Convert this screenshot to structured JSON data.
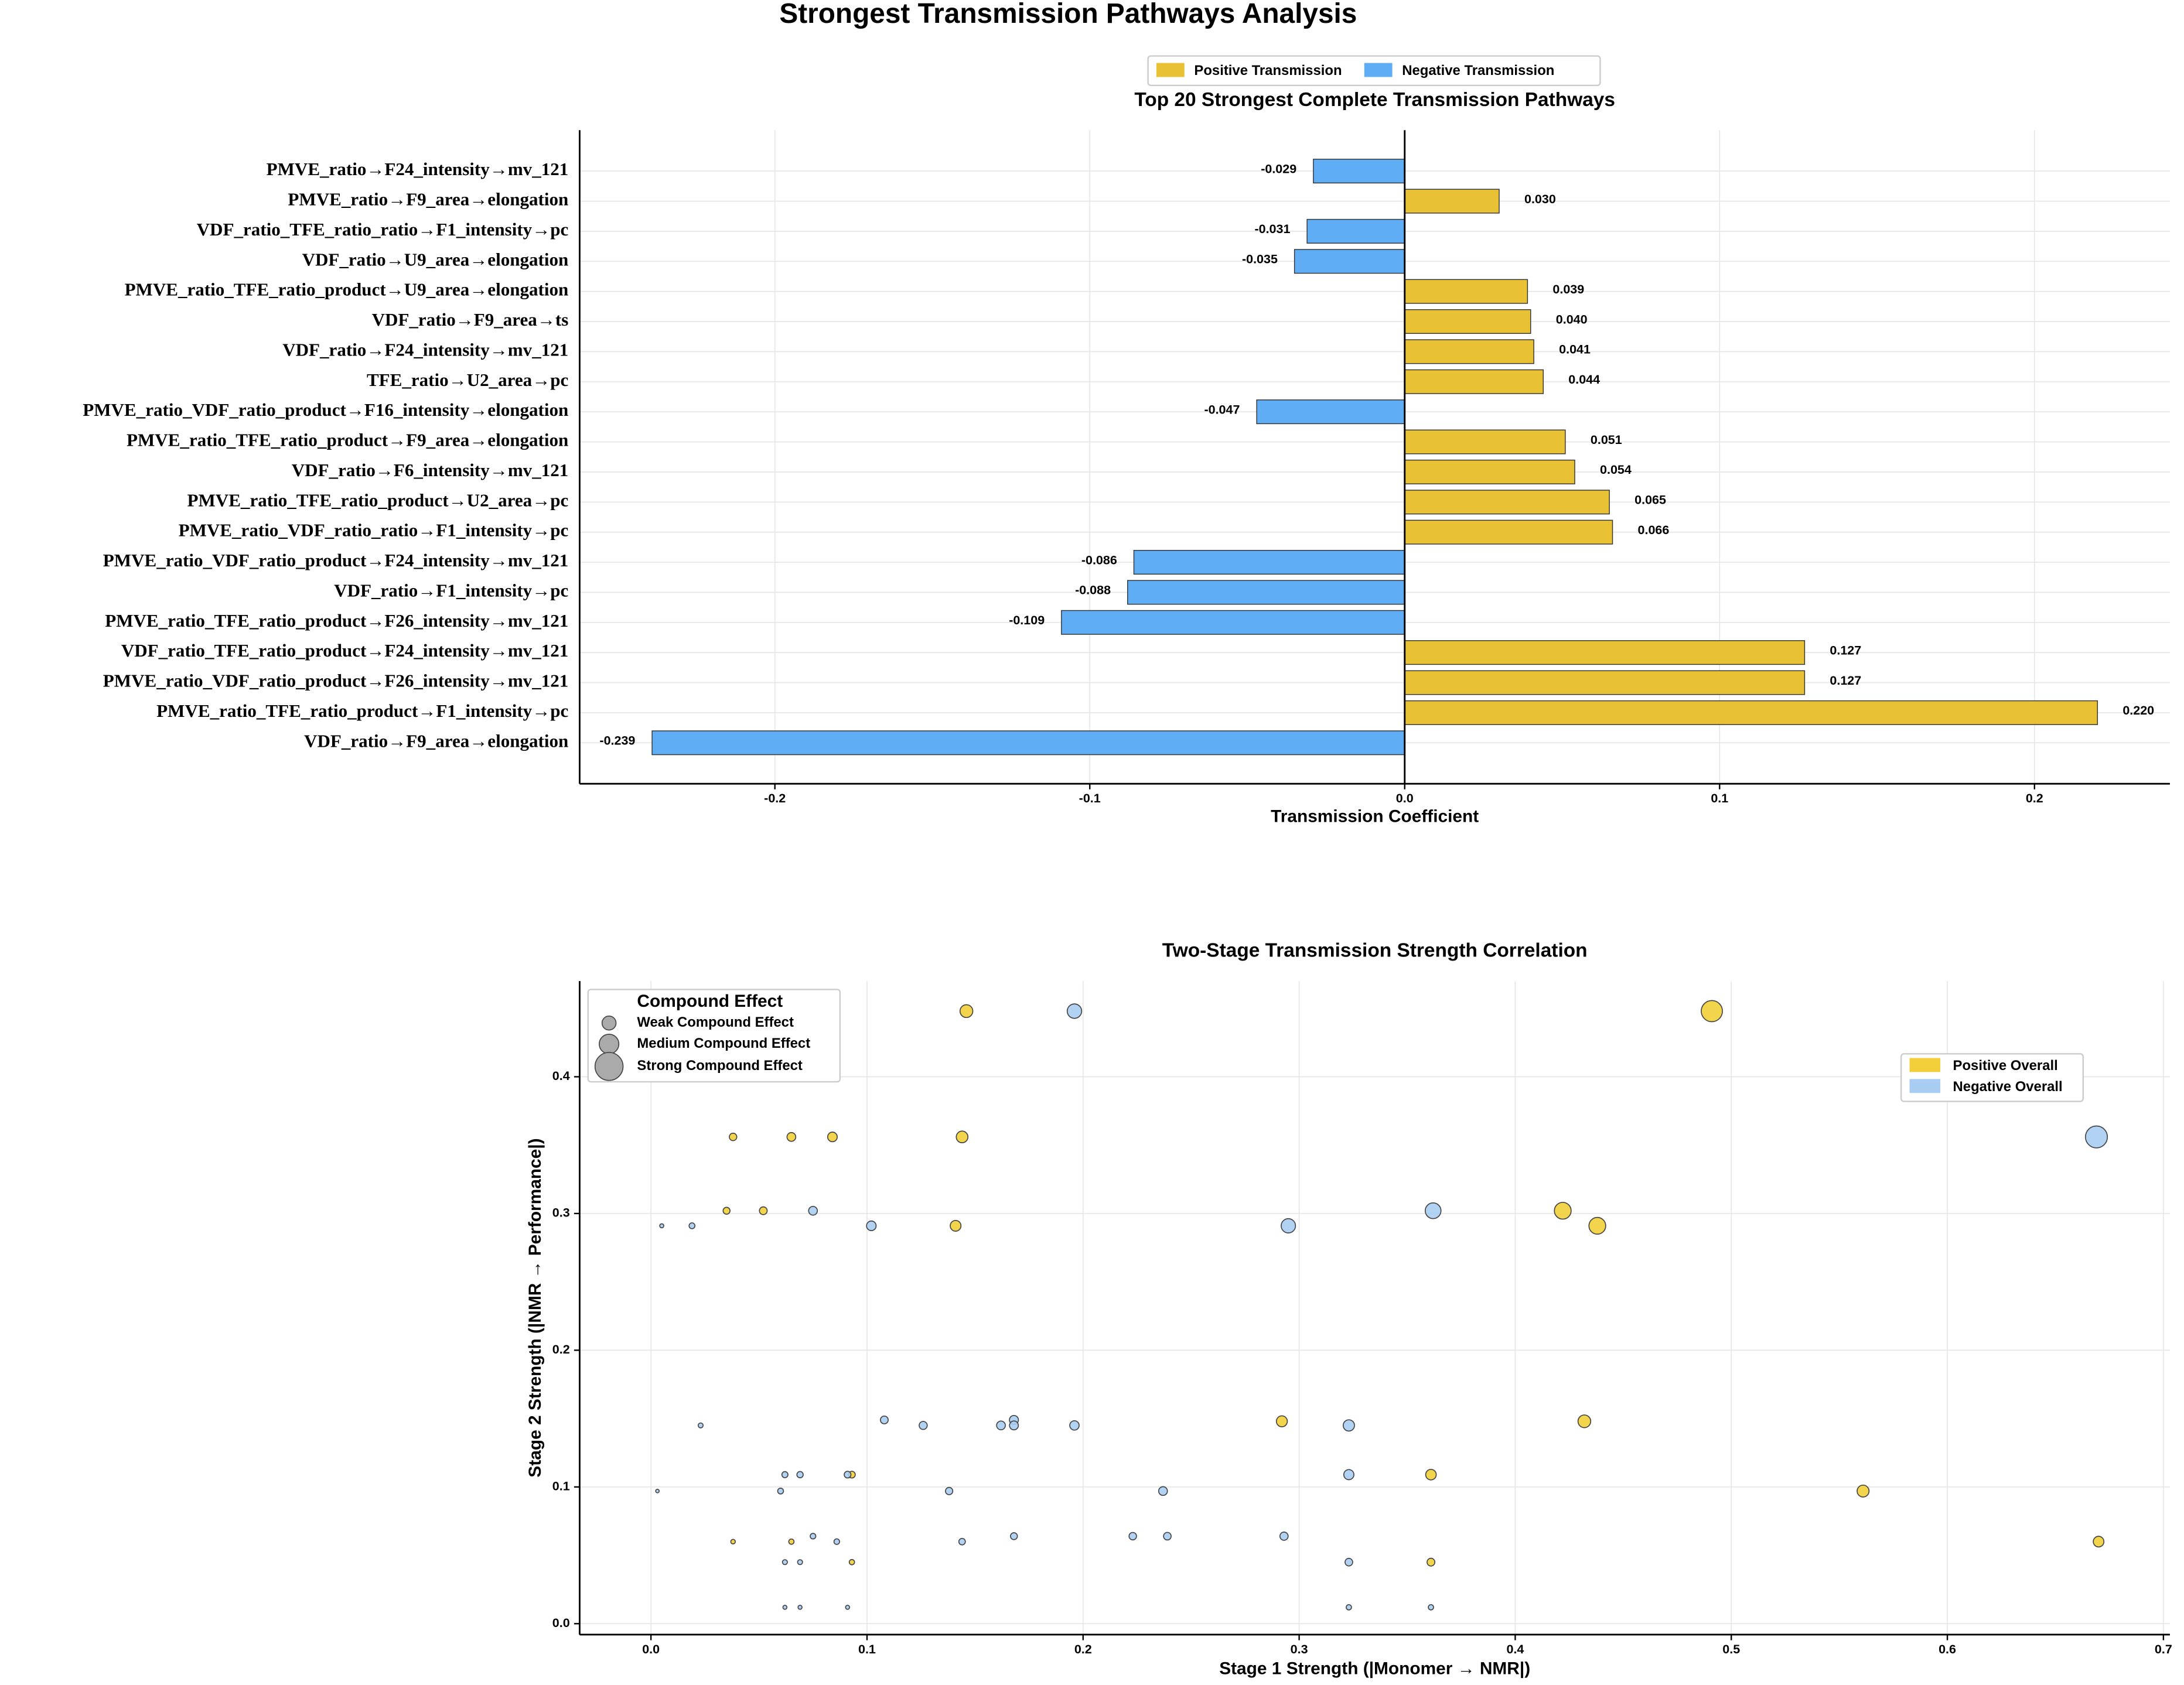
{
  "title": "Strongest Transmission Pathways Analysis",
  "chart_data": [
    {
      "type": "bar",
      "orientation": "horizontal",
      "title": "Top 20 Strongest Complete Transmission Pathways",
      "x_label": "Transmission Coefficient",
      "categories": [
        "PMVE_ratio→F24_intensity→mv_121",
        "PMVE_ratio→F9_area→elongation",
        "VDF_ratio_TFE_ratio_ratio→F1_intensity→pc",
        "VDF_ratio→U9_area→elongation",
        "PMVE_ratio_TFE_ratio_product→U9_area→elongation",
        "VDF_ratio→F9_area→ts",
        "VDF_ratio→F24_intensity→mv_121",
        "TFE_ratio→U2_area→pc",
        "PMVE_ratio_VDF_ratio_product→F16_intensity→elongation",
        "PMVE_ratio_TFE_ratio_product→F9_area→elongation",
        "VDF_ratio→F6_intensity→mv_121",
        "PMVE_ratio_TFE_ratio_product→U2_area→pc",
        "PMVE_ratio_VDF_ratio_ratio→F1_intensity→pc",
        "PMVE_ratio_VDF_ratio_product→F24_intensity→mv_121",
        "VDF_ratio→F1_intensity→pc",
        "PMVE_ratio_TFE_ratio_product→F26_intensity→mv_121",
        "VDF_ratio_TFE_ratio_product→F24_intensity→mv_121",
        "PMVE_ratio_VDF_ratio_product→F26_intensity→mv_121",
        "PMVE_ratio_TFE_ratio_product→F1_intensity→pc",
        "VDF_ratio→F9_area→elongation"
      ],
      "series": [
        {
          "name": "Positive Transmission",
          "color": "#e8c234",
          "values": [
            null,
            0.03,
            null,
            null,
            0.039,
            0.04,
            0.041,
            0.044,
            null,
            0.051,
            0.054,
            0.065,
            0.066,
            null,
            null,
            null,
            0.127,
            0.127,
            0.22,
            null
          ],
          "value_labels": [
            null,
            "0.030",
            null,
            null,
            "0.039",
            "0.040",
            "0.041",
            "0.044",
            null,
            "0.051",
            "0.054",
            "0.065",
            "0.066",
            null,
            null,
            null,
            "0.127",
            "0.127",
            "0.220",
            null
          ]
        },
        {
          "name": "Negative Transmission",
          "color": "#5fadf5",
          "values": [
            -0.029,
            null,
            -0.031,
            -0.035,
            null,
            null,
            null,
            null,
            -0.047,
            null,
            null,
            null,
            null,
            -0.086,
            -0.088,
            -0.109,
            null,
            null,
            null,
            -0.239
          ],
          "value_labels": [
            "-0.029",
            null,
            "-0.031",
            "-0.035",
            null,
            null,
            null,
            null,
            "-0.047",
            null,
            null,
            null,
            null,
            "-0.086",
            "-0.088",
            "-0.109",
            null,
            null,
            null,
            "-0.239"
          ]
        }
      ],
      "xlim": [
        -0.262,
        0.243
      ],
      "xticks": [
        -0.2,
        -0.1,
        {
          "value": 0,
          "label": "0.0"
        },
        0.1,
        0.2
      ],
      "grid": true
    },
    {
      "type": "scatter",
      "title": "Two-Stage Transmission Strength Correlation",
      "x_label": "Stage 1 Strength (|Monomer → NMR|)",
      "y_label": "Stage 2 Strength (|NMR → Performance|)",
      "size_legend": {
        "title": "Compound Effect",
        "labels": [
          "Weak Compound Effect",
          "Medium Compound Effect",
          "Strong Compound Effect"
        ]
      },
      "series": [
        {
          "name": "Positive Overall",
          "color": "#f2cf3a",
          "x": [
            0.146,
            0.491,
            0.038,
            0.065,
            0.084,
            0.144,
            0.035,
            0.052,
            0.422,
            0.438,
            0.141,
            0.292,
            0.432,
            0.093,
            0.361,
            0.561,
            0.67,
            0.093,
            0.361,
            0.038,
            0.065
          ],
          "values": [
            0.448,
            0.448,
            0.356,
            0.356,
            0.356,
            0.356,
            0.302,
            0.302,
            0.302,
            0.291,
            0.291,
            0.148,
            0.148,
            0.109,
            0.109,
            0.097,
            0.06,
            0.045,
            0.045,
            0.06,
            0.06
          ],
          "sizes": [
            0.065,
            0.22,
            0.014,
            0.023,
            0.03,
            0.051,
            0.011,
            0.016,
            0.127,
            0.127,
            0.041,
            0.043,
            0.064,
            0.01,
            0.039,
            0.054,
            0.04,
            0.004,
            0.016,
            0.002,
            0.004
          ]
        },
        {
          "name": "Negative Overall",
          "color": "#a9cdf2",
          "x": [
            0.196,
            0.669,
            0.075,
            0.362,
            0.295,
            0.102,
            0.005,
            0.019,
            0.108,
            0.126,
            0.162,
            0.168,
            0.168,
            0.196,
            0.323,
            0.023,
            0.062,
            0.069,
            0.091,
            0.323,
            0.06,
            0.138,
            0.237,
            0.003,
            0.075,
            0.086,
            0.144,
            0.168,
            0.223,
            0.239,
            0.293,
            0.062,
            0.069,
            0.323,
            0.062,
            0.069,
            0.091,
            0.323,
            0.361
          ],
          "values": [
            0.448,
            0.356,
            0.302,
            0.302,
            0.291,
            0.291,
            0.291,
            0.291,
            0.149,
            0.145,
            0.145,
            0.149,
            0.145,
            0.145,
            0.145,
            0.145,
            0.109,
            0.109,
            0.109,
            0.109,
            0.097,
            0.097,
            0.097,
            0.097,
            0.064,
            0.06,
            0.06,
            0.064,
            0.064,
            0.064,
            0.064,
            0.045,
            0.045,
            0.045,
            0.012,
            0.012,
            0.012,
            0.012,
            0.012
          ],
          "sizes": [
            0.088,
            0.238,
            0.023,
            0.109,
            0.086,
            0.03,
            0.001,
            0.006,
            0.016,
            0.018,
            0.023,
            0.025,
            0.024,
            0.028,
            0.047,
            0.003,
            0.007,
            0.008,
            0.01,
            0.035,
            0.006,
            0.013,
            0.023,
            0.0003,
            0.005,
            0.005,
            0.009,
            0.011,
            0.014,
            0.015,
            0.019,
            0.003,
            0.003,
            0.015,
            0.001,
            0.001,
            0.001,
            0.004,
            0.004
          ]
        }
      ],
      "xlim": [
        -0.033,
        0.703
      ],
      "xticks": [
        {
          "value": 0,
          "label": "0.0"
        },
        0.1,
        0.2,
        0.3,
        0.4,
        0.5,
        0.6,
        0.7
      ],
      "ylim": [
        -0.008,
        0.47
      ],
      "yticks": [
        {
          "value": 0,
          "label": "0.0"
        },
        0.1,
        0.2,
        0.3,
        0.4
      ],
      "grid": true
    }
  ]
}
